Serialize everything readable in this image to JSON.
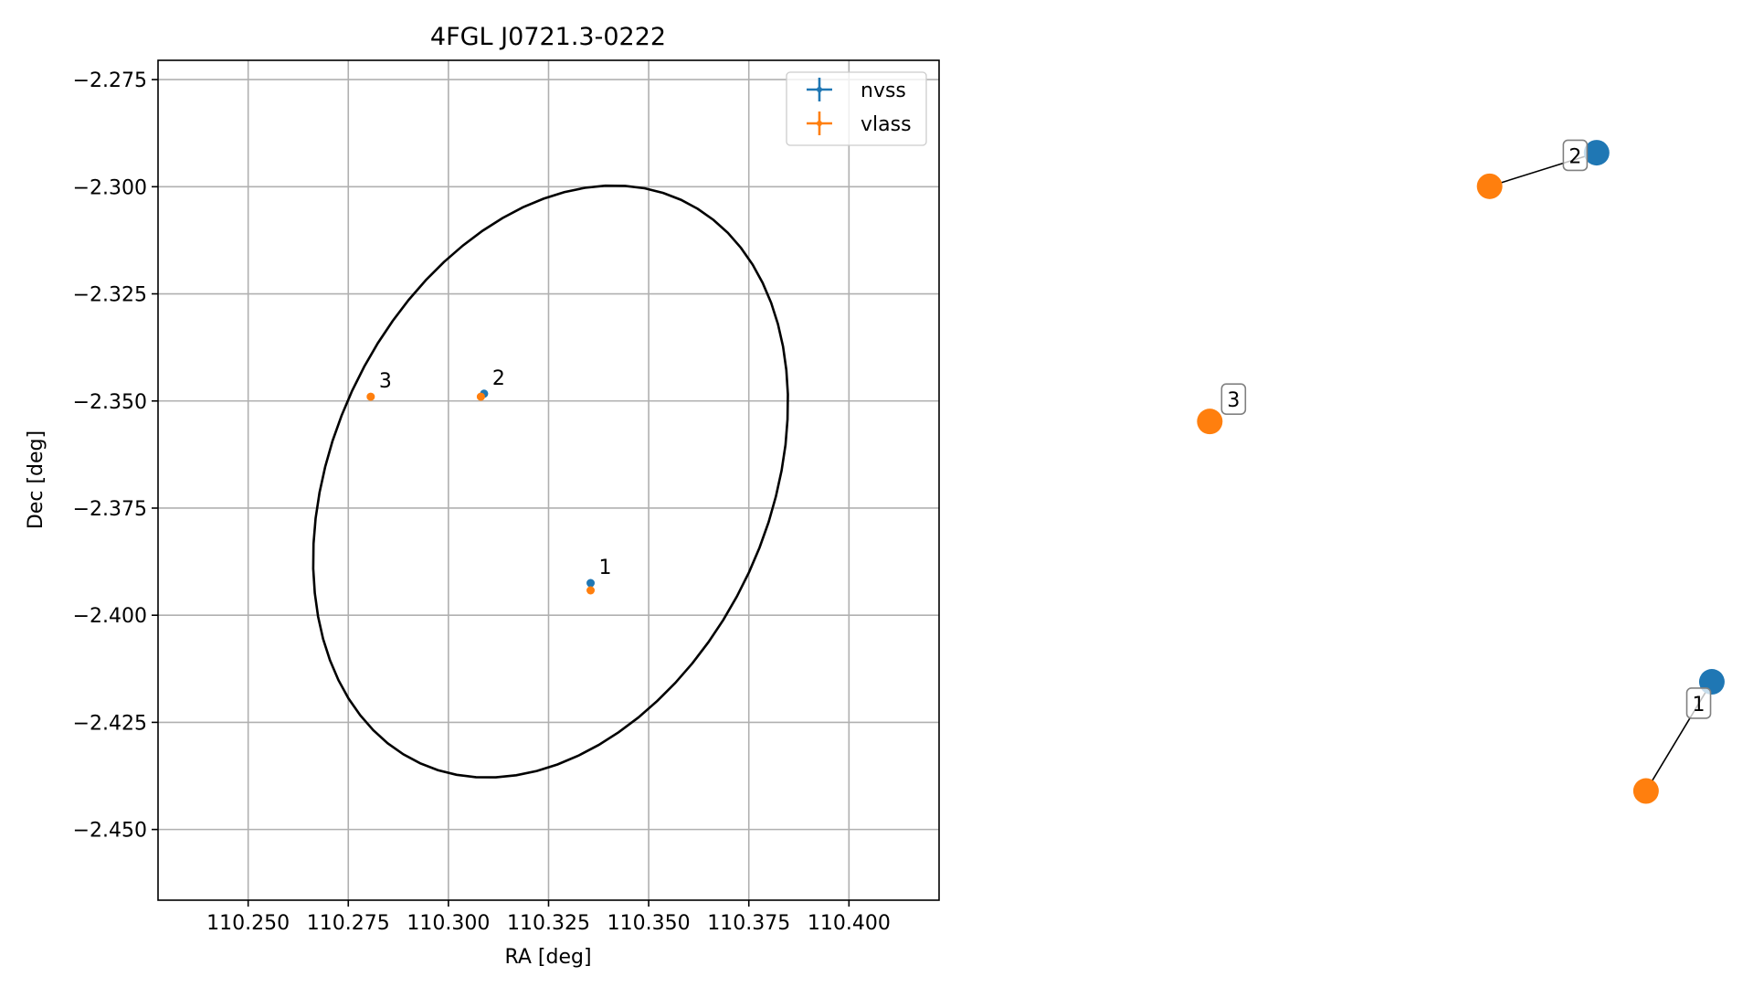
{
  "chart_data": [
    {
      "type": "scatter",
      "title": "4FGL J0721.3-0222",
      "xlabel": "RA [deg]",
      "ylabel": "Dec [deg]",
      "xlim": [
        110.2275,
        110.4225
      ],
      "ylim": [
        -2.4665,
        -2.2705
      ],
      "xticks": [
        110.25,
        110.275,
        110.3,
        110.325,
        110.35,
        110.375,
        110.4
      ],
      "xtick_labels": [
        "110.250",
        "110.275",
        "110.300",
        "110.325",
        "110.350",
        "110.375",
        "110.400"
      ],
      "yticks": [
        -2.275,
        -2.3,
        -2.325,
        -2.35,
        -2.375,
        -2.4,
        -2.425,
        -2.45
      ],
      "ytick_labels": [
        "−2.275",
        "−2.300",
        "−2.325",
        "−2.350",
        "−2.375",
        "−2.400",
        "−2.425",
        "−2.450"
      ],
      "grid": true,
      "legend": "top-right",
      "ellipse": {
        "center": [
          110.3255,
          -2.3688
        ],
        "semi_major": 0.0735,
        "semi_minor": 0.0537,
        "angle_deg": 60,
        "color": "#000000"
      },
      "series": [
        {
          "name": "nvss",
          "color": "#1f77b4",
          "points": [
            {
              "label": "1",
              "x": 110.3355,
              "y": -2.3925
            },
            {
              "label": "2",
              "x": 110.3089,
              "y": -2.3483
            }
          ]
        },
        {
          "name": "vlass",
          "color": "#ff7f0e",
          "points": [
            {
              "label": "1",
              "x": 110.3355,
              "y": -2.3942
            },
            {
              "label": "2",
              "x": 110.3081,
              "y": -2.349
            },
            {
              "label": "3",
              "x": 110.2806,
              "y": -2.349
            }
          ]
        }
      ]
    },
    {
      "type": "network",
      "nodes": [
        {
          "id": "nvss-1",
          "series": "nvss",
          "color": "#1f77b4",
          "pos": [
            0.95,
            0.26
          ]
        },
        {
          "id": "vlass-1",
          "series": "vlass",
          "color": "#ff7f0e",
          "pos": [
            0.87,
            0.13
          ]
        },
        {
          "id": "nvss-2",
          "series": "nvss",
          "color": "#1f77b4",
          "pos": [
            0.81,
            0.89
          ]
        },
        {
          "id": "vlass-2",
          "series": "vlass",
          "color": "#ff7f0e",
          "pos": [
            0.68,
            0.85
          ]
        },
        {
          "id": "vlass-3",
          "series": "vlass",
          "color": "#ff7f0e",
          "pos": [
            0.34,
            0.57
          ]
        }
      ],
      "edges": [
        {
          "from": "nvss-1",
          "to": "vlass-1",
          "label": "1"
        },
        {
          "from": "nvss-2",
          "to": "vlass-2",
          "label": "2"
        },
        {
          "from": "vlass-3",
          "to": null,
          "label": "3"
        }
      ]
    }
  ]
}
